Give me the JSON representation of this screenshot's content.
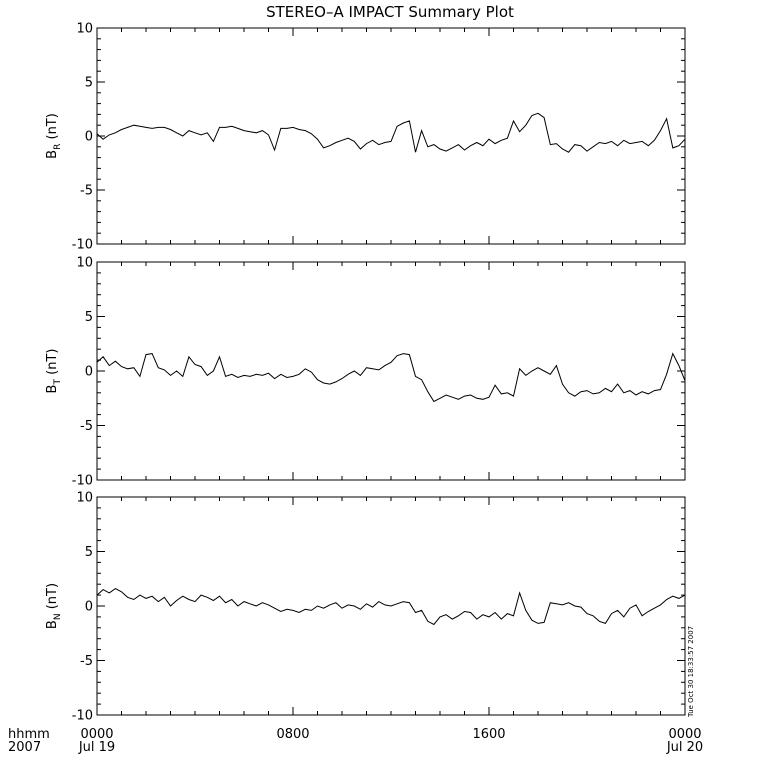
{
  "chart_data": {
    "type": "line",
    "title": "STEREO–A IMPACT Summary Plot",
    "panels": [
      {
        "ylabel_main": "B",
        "ylabel_sub": "R",
        "ylabel_unit": "(nT)",
        "ylim": [
          -10,
          10
        ],
        "yticks": [
          10,
          5,
          0,
          -5,
          -10
        ],
        "x": [
          0,
          0.25,
          0.5,
          0.75,
          1,
          1.25,
          1.5,
          1.75,
          2,
          2.25,
          2.5,
          2.75,
          3,
          3.25,
          3.5,
          3.75,
          4,
          4.25,
          4.5,
          4.75,
          5,
          5.25,
          5.5,
          5.75,
          6,
          6.25,
          6.5,
          6.75,
          7,
          7.25,
          7.5,
          7.75,
          8,
          8.25,
          8.5,
          8.75,
          9,
          9.25,
          9.5,
          9.75,
          10,
          10.25,
          10.5,
          10.75,
          11,
          11.25,
          11.5,
          11.75,
          12,
          12.25,
          12.5,
          12.75,
          13,
          13.25,
          13.5,
          13.75,
          14,
          14.25,
          14.5,
          14.75,
          15,
          15.25,
          15.5,
          15.75,
          16,
          16.25,
          16.5,
          16.75,
          17,
          17.25,
          17.5,
          17.75,
          18,
          18.25,
          18.5,
          18.75,
          19,
          19.25,
          19.5,
          19.75,
          20,
          20.25,
          20.5,
          20.75,
          21,
          21.25,
          21.5,
          21.75,
          22,
          22.25,
          22.5,
          22.75,
          23,
          23.25,
          23.5,
          23.75,
          24
        ],
        "values": [
          0.2,
          -0.3,
          0.1,
          0.3,
          0.6,
          0.8,
          1.0,
          0.9,
          0.8,
          0.7,
          0.8,
          0.8,
          0.6,
          0.3,
          0.0,
          0.5,
          0.3,
          0.1,
          0.3,
          -0.5,
          0.8,
          0.8,
          0.9,
          0.7,
          0.5,
          0.4,
          0.3,
          0.5,
          0.1,
          -1.3,
          0.7,
          0.7,
          0.8,
          0.6,
          0.5,
          0.2,
          -0.3,
          -1.1,
          -0.9,
          -0.6,
          -0.4,
          -0.2,
          -0.5,
          -1.2,
          -0.7,
          -0.4,
          -0.8,
          -0.6,
          -0.5,
          0.9,
          1.2,
          1.4,
          -1.5,
          0.5,
          -1.0,
          -0.8,
          -1.2,
          -1.4,
          -1.1,
          -0.8,
          -1.3,
          -0.9,
          -0.6,
          -0.9,
          -0.3,
          -0.7,
          -0.4,
          -0.2,
          1.4,
          0.4,
          1.0,
          1.9,
          2.1,
          1.7,
          -0.8,
          -0.7,
          -1.2,
          -1.5,
          -0.8,
          -0.9,
          -1.4,
          -1.0,
          -0.6,
          -0.7,
          -0.5,
          -0.9,
          -0.4,
          -0.7,
          -0.6,
          -0.5,
          -0.9,
          -0.4,
          0.5,
          1.6,
          -1.1,
          -0.9,
          -0.3
        ]
      },
      {
        "ylabel_main": "B",
        "ylabel_sub": "T",
        "ylabel_unit": "(nT)",
        "ylim": [
          -10,
          10
        ],
        "yticks": [
          10,
          5,
          0,
          -5,
          -10
        ],
        "x": [
          0,
          0.25,
          0.5,
          0.75,
          1,
          1.25,
          1.5,
          1.75,
          2,
          2.25,
          2.5,
          2.75,
          3,
          3.25,
          3.5,
          3.75,
          4,
          4.25,
          4.5,
          4.75,
          5,
          5.25,
          5.5,
          5.75,
          6,
          6.25,
          6.5,
          6.75,
          7,
          7.25,
          7.5,
          7.75,
          8,
          8.25,
          8.5,
          8.75,
          9,
          9.25,
          9.5,
          9.75,
          10,
          10.25,
          10.5,
          10.75,
          11,
          11.25,
          11.5,
          11.75,
          12,
          12.25,
          12.5,
          12.75,
          13,
          13.25,
          13.5,
          13.75,
          14,
          14.25,
          14.5,
          14.75,
          15,
          15.25,
          15.5,
          15.75,
          16,
          16.25,
          16.5,
          16.75,
          17,
          17.25,
          17.5,
          17.75,
          18,
          18.25,
          18.5,
          18.75,
          19,
          19.25,
          19.5,
          19.75,
          20,
          20.25,
          20.5,
          20.75,
          21,
          21.25,
          21.5,
          21.75,
          22,
          22.25,
          22.5,
          22.75,
          23,
          23.25,
          23.5,
          23.75,
          24
        ],
        "values": [
          0.8,
          1.3,
          0.5,
          0.9,
          0.4,
          0.2,
          0.3,
          -0.5,
          1.5,
          1.6,
          0.3,
          0.1,
          -0.4,
          0.0,
          -0.5,
          1.3,
          0.6,
          0.4,
          -0.4,
          0.0,
          1.3,
          -0.5,
          -0.3,
          -0.6,
          -0.4,
          -0.5,
          -0.3,
          -0.4,
          -0.2,
          -0.7,
          -0.3,
          -0.6,
          -0.5,
          -0.3,
          0.2,
          -0.1,
          -0.8,
          -1.1,
          -1.2,
          -1.0,
          -0.7,
          -0.3,
          0.0,
          -0.4,
          0.3,
          0.2,
          0.1,
          0.5,
          0.8,
          1.4,
          1.6,
          1.5,
          -0.5,
          -0.8,
          -1.9,
          -2.8,
          -2.5,
          -2.2,
          -2.4,
          -2.6,
          -2.3,
          -2.2,
          -2.5,
          -2.6,
          -2.4,
          -1.3,
          -2.1,
          -2.0,
          -2.3,
          0.2,
          -0.4,
          0.0,
          0.3,
          0.0,
          -0.3,
          0.5,
          -1.2,
          -2.0,
          -2.3,
          -1.9,
          -1.8,
          -2.1,
          -2.0,
          -1.6,
          -1.9,
          -1.2,
          -2.0,
          -1.8,
          -2.2,
          -1.9,
          -2.1,
          -1.8,
          -1.7,
          -0.3,
          1.6,
          0.5,
          -0.9
        ]
      },
      {
        "ylabel_main": "B",
        "ylabel_sub": "N",
        "ylabel_unit": "(nT)",
        "ylim": [
          -10,
          10
        ],
        "yticks": [
          10,
          5,
          0,
          -5,
          -10
        ],
        "x": [
          0,
          0.25,
          0.5,
          0.75,
          1,
          1.25,
          1.5,
          1.75,
          2,
          2.25,
          2.5,
          2.75,
          3,
          3.25,
          3.5,
          3.75,
          4,
          4.25,
          4.5,
          4.75,
          5,
          5.25,
          5.5,
          5.75,
          6,
          6.25,
          6.5,
          6.75,
          7,
          7.25,
          7.5,
          7.75,
          8,
          8.25,
          8.5,
          8.75,
          9,
          9.25,
          9.5,
          9.75,
          10,
          10.25,
          10.5,
          10.75,
          11,
          11.25,
          11.5,
          11.75,
          12,
          12.25,
          12.5,
          12.75,
          13,
          13.25,
          13.5,
          13.75,
          14,
          14.25,
          14.5,
          14.75,
          15,
          15.25,
          15.5,
          15.75,
          16,
          16.25,
          16.5,
          16.75,
          17,
          17.25,
          17.5,
          17.75,
          18,
          18.25,
          18.5,
          18.75,
          19,
          19.25,
          19.5,
          19.75,
          20,
          20.25,
          20.5,
          20.75,
          21,
          21.25,
          21.5,
          21.75,
          22,
          22.25,
          22.5,
          22.75,
          23,
          23.25,
          23.5,
          23.75,
          24
        ],
        "values": [
          1.0,
          1.5,
          1.2,
          1.6,
          1.3,
          0.8,
          0.6,
          1.0,
          0.7,
          0.9,
          0.4,
          0.8,
          0.0,
          0.5,
          0.9,
          0.6,
          0.4,
          1.0,
          0.8,
          0.5,
          0.9,
          0.3,
          0.6,
          0.0,
          0.4,
          0.2,
          0.0,
          0.3,
          0.1,
          -0.2,
          -0.5,
          -0.3,
          -0.4,
          -0.6,
          -0.3,
          -0.4,
          0.0,
          -0.2,
          0.1,
          0.3,
          -0.2,
          0.1,
          0.0,
          -0.3,
          0.2,
          -0.1,
          0.4,
          0.1,
          0.0,
          0.2,
          0.4,
          0.3,
          -0.6,
          -0.4,
          -1.4,
          -1.7,
          -1.0,
          -0.8,
          -1.2,
          -0.9,
          -0.5,
          -0.6,
          -1.2,
          -0.8,
          -1.0,
          -0.6,
          -1.2,
          -0.7,
          -0.9,
          1.2,
          -0.4,
          -1.3,
          -1.6,
          -1.5,
          0.3,
          0.2,
          0.1,
          0.3,
          0.0,
          -0.1,
          -0.7,
          -0.9,
          -1.4,
          -1.6,
          -0.7,
          -0.4,
          -1.0,
          -0.2,
          0.1,
          -0.9,
          -0.5,
          -0.2,
          0.1,
          0.6,
          0.9,
          0.7,
          1.0
        ]
      }
    ],
    "x_ticks": [
      {
        "x": 0,
        "time": "0000",
        "date": "Jul 19"
      },
      {
        "x": 8,
        "time": "0800",
        "date": ""
      },
      {
        "x": 16,
        "time": "1600",
        "date": ""
      },
      {
        "x": 24,
        "time": "0000",
        "date": "Jul 20"
      }
    ],
    "xlim": [
      0,
      24
    ],
    "x_units_line1": "hhmm",
    "x_units_line2": "2007",
    "timestamp": "Tue Oct 30 18:33:57 2007",
    "grid": false,
    "legend": "none",
    "line_color": "#000000"
  }
}
